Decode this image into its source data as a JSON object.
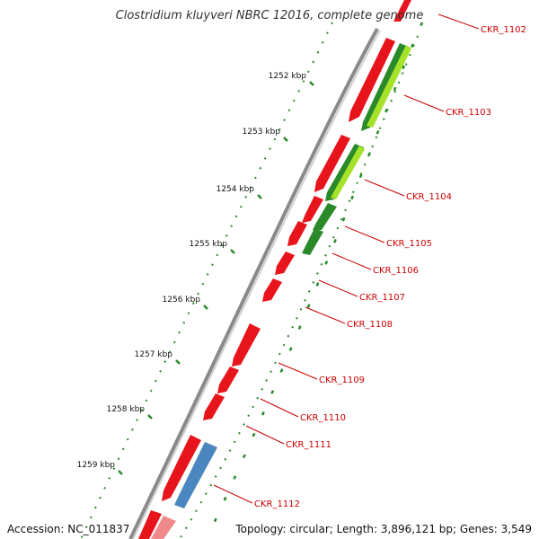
{
  "title": "Clostridium kluyveri NBRC 12016, complete genome",
  "footer": {
    "accession": "Accession: NC_011837",
    "topology": "Topology: circular; Length: 3,896,121 bp; Genes: 3,549"
  },
  "ruler": {
    "ticks": [
      "1252 kbp",
      "1253 kbp",
      "1254 kbp",
      "1255 kbp",
      "1256 kbp",
      "1257 kbp",
      "1258 kbp",
      "1259 kbp"
    ]
  },
  "genes": [
    {
      "label": "CKR_1102",
      "color": "#e8141c"
    },
    {
      "label": "CKR_1103",
      "color": "#e8141c"
    },
    {
      "label": "CKR_1104",
      "color": "#e8141c"
    },
    {
      "label": "CKR_1105",
      "color": "#e8141c"
    },
    {
      "label": "CKR_1106",
      "color": "#e8141c"
    },
    {
      "label": "CKR_1107",
      "color": "#e8141c"
    },
    {
      "label": "CKR_1108",
      "color": "#e8141c"
    },
    {
      "label": "CKR_1109",
      "color": "#e8141c"
    },
    {
      "label": "CKR_1110",
      "color": "#e8141c"
    },
    {
      "label": "CKR_1111",
      "color": "#e8141c"
    },
    {
      "label": "CKR_1112",
      "color": "#e8141c"
    }
  ],
  "colors": {
    "gene_red": "#e8141c",
    "gene_pink": "#f08a8a",
    "gene_blue": "#4a86c0",
    "gene_green_dark": "#2a8a2a",
    "gene_green_light": "#a6e22a",
    "backbone": "#8a8a8a",
    "tick_green": "#2a8a2a",
    "label_red": "#cc0000"
  }
}
